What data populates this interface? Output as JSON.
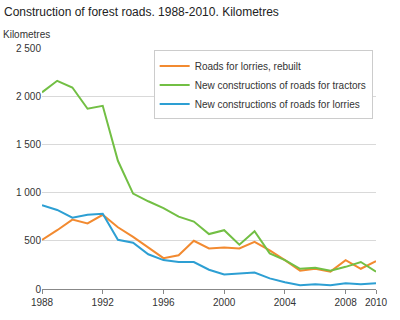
{
  "chart_data": {
    "type": "line",
    "title": "Construction of forest roads. 1988-2010. Kilometres",
    "y_label": "Kilometres",
    "x": [
      1988,
      1989,
      1990,
      1991,
      1992,
      1993,
      1994,
      1995,
      1996,
      1997,
      1998,
      1999,
      2000,
      2001,
      2002,
      2003,
      2004,
      2005,
      2006,
      2007,
      2008,
      2009,
      2010
    ],
    "series": [
      {
        "name": "Roads for lorries, rebuilt",
        "color": "#f28a30",
        "values": [
          510,
          610,
          720,
          680,
          770,
          640,
          540,
          430,
          320,
          350,
          500,
          420,
          430,
          420,
          490,
          400,
          300,
          190,
          210,
          180,
          300,
          210,
          290
        ]
      },
      {
        "name": "New constructions of roads for tractors",
        "color": "#72bf44",
        "values": [
          2040,
          2160,
          2090,
          1870,
          1900,
          1330,
          990,
          910,
          840,
          750,
          700,
          570,
          610,
          460,
          600,
          370,
          300,
          210,
          220,
          190,
          230,
          280,
          180
        ]
      },
      {
        "name": "New constructions of roads for lorries",
        "color": "#2d9fd3",
        "values": [
          870,
          820,
          740,
          770,
          780,
          510,
          480,
          360,
          300,
          280,
          280,
          200,
          150,
          160,
          170,
          110,
          70,
          40,
          50,
          40,
          60,
          50,
          60
        ]
      }
    ],
    "xlim": [
      1988,
      2010
    ],
    "xticks": [
      1988,
      1992,
      1996,
      2000,
      2004,
      2008,
      2010
    ],
    "ylim": [
      0,
      2500
    ],
    "yticks": [
      0,
      500,
      {
        "value": 1000,
        "label": "1 000"
      },
      {
        "value": 1500,
        "label": "1 500"
      },
      {
        "value": 2000,
        "label": "2 000"
      },
      {
        "value": 2500,
        "label": "2 500"
      }
    ],
    "grid": true,
    "legend": "top right"
  }
}
